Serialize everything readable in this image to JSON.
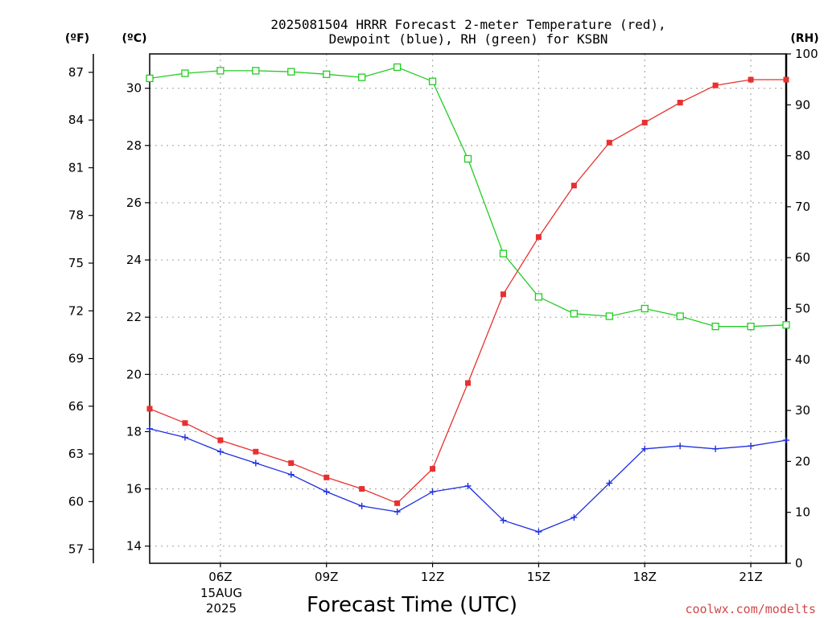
{
  "chart_data": {
    "type": "line",
    "title_line1": "2025081504 HRRR Forecast 2-meter Temperature (red),",
    "title_line2": "Dewpoint (blue), RH (green) for KSBN",
    "xlabel": "Forecast Time (UTC)",
    "credit": "coolwx.com/modelts",
    "unit_left_f": "(ºF)",
    "unit_left_c": "(ºC)",
    "unit_right": "(RH)",
    "date_label_day": "15AUG",
    "date_label_year": "2025",
    "x_hours": [
      4,
      5,
      6,
      7,
      8,
      9,
      10,
      11,
      12,
      13,
      14,
      15,
      16,
      17,
      18,
      19,
      20,
      21,
      22
    ],
    "x_ticks": [
      {
        "hour": 6,
        "label": "06Z"
      },
      {
        "hour": 9,
        "label": "09Z"
      },
      {
        "hour": 12,
        "label": "12Z"
      },
      {
        "hour": 15,
        "label": "15Z"
      },
      {
        "hour": 18,
        "label": "18Z"
      },
      {
        "hour": 21,
        "label": "21Z"
      }
    ],
    "xlim": [
      4,
      22
    ],
    "ylim_c": [
      13.4,
      31.2
    ],
    "ylim_f": [
      56.12,
      88.16
    ],
    "ylim_rh": [
      0,
      100
    ],
    "y_ticks_c": [
      14,
      16,
      18,
      20,
      22,
      24,
      26,
      28,
      30
    ],
    "y_ticks_f": [
      57,
      60,
      63,
      66,
      69,
      72,
      75,
      78,
      81,
      84,
      87
    ],
    "y_ticks_rh": [
      0,
      10,
      20,
      30,
      40,
      50,
      60,
      70,
      80,
      90,
      100
    ],
    "grid": true,
    "series": [
      {
        "name": "Temperature",
        "color": "#e83030",
        "marker": "filled-square",
        "axis": "c",
        "values": [
          18.8,
          18.3,
          17.7,
          17.3,
          16.9,
          16.4,
          16.0,
          15.5,
          16.7,
          19.7,
          22.8,
          24.8,
          26.6,
          28.1,
          28.8,
          29.5,
          30.1,
          30.3,
          30.3
        ]
      },
      {
        "name": "Dewpoint",
        "color": "#2030e0",
        "marker": "plus",
        "axis": "c",
        "values": [
          18.1,
          17.8,
          17.3,
          16.9,
          16.5,
          15.9,
          15.4,
          15.2,
          15.9,
          16.1,
          14.9,
          14.5,
          15.0,
          16.2,
          17.4,
          17.5,
          17.4,
          17.5,
          17.7
        ]
      },
      {
        "name": "RH",
        "color": "#22cc22",
        "marker": "open-square",
        "axis": "rh",
        "values": [
          95.2,
          96.2,
          96.7,
          96.7,
          96.5,
          96.0,
          95.4,
          97.4,
          94.6,
          79.4,
          60.8,
          52.3,
          49.0,
          48.5,
          50.0,
          48.5,
          46.5,
          46.5,
          46.8
        ]
      }
    ]
  }
}
